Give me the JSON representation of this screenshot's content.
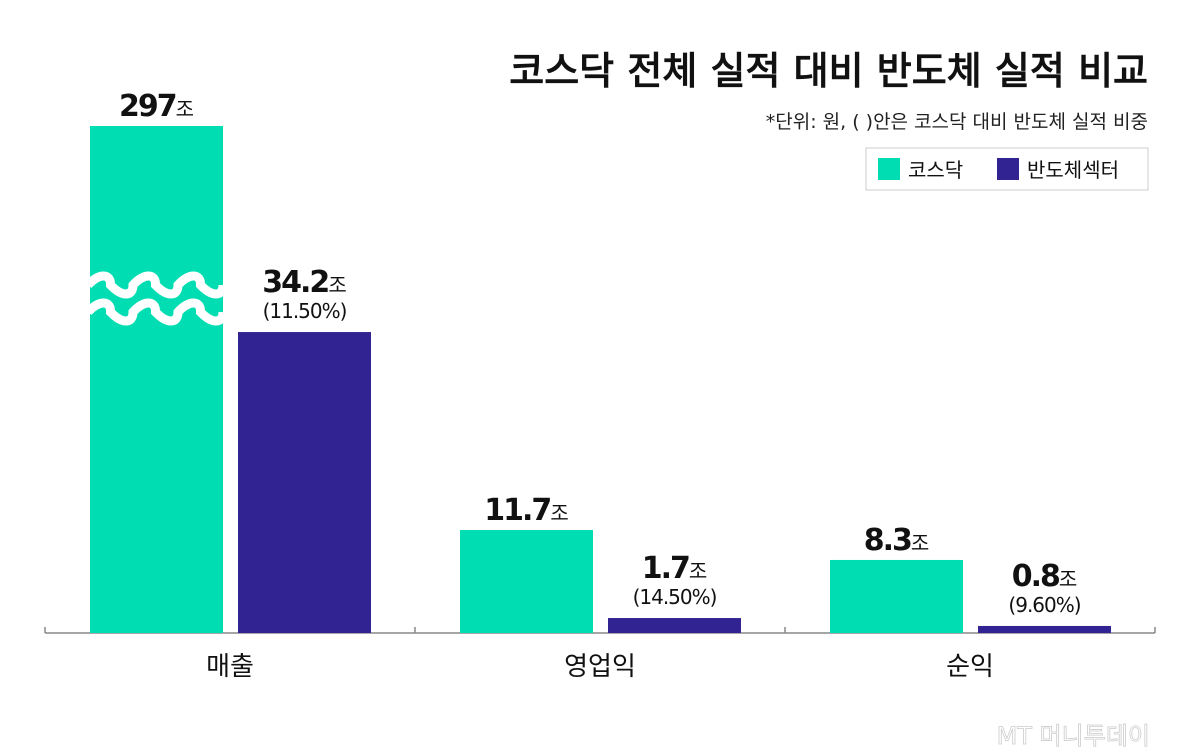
{
  "chart_data": {
    "type": "bar",
    "title": "코스닥 전체 실적 대비 반도체 실적 비교",
    "subtitle": "*단위: 원, ( )안은 코스닥 대비 반도체 실적 비중",
    "categories": [
      "매출",
      "영업익",
      "순익"
    ],
    "unit": "조",
    "series": [
      {
        "name": "코스닥",
        "color": "#00DDB2",
        "values": [
          297,
          11.7,
          8.3
        ],
        "labels": [
          "297",
          "11.7",
          "8.3"
        ]
      },
      {
        "name": "반도체섹터",
        "color": "#312492",
        "values": [
          34.2,
          1.7,
          0.8
        ],
        "labels": [
          "34.2",
          "1.7",
          "0.8"
        ],
        "shares": [
          "(11.50%)",
          "(14.50%)",
          "(9.60%)"
        ]
      }
    ],
    "axis_break": {
      "series": "코스닥",
      "category": "매출"
    },
    "legend": "top-right",
    "grid": false
  },
  "watermark": "MT 머니투데이"
}
